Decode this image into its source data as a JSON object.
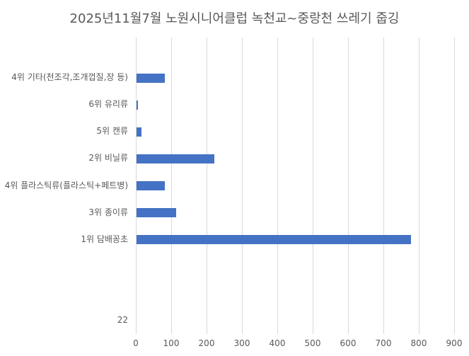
{
  "title": "2025년11월7월 노원시니어클럽 녹천교~중랑천 쓰레기 줍깅",
  "colors": {
    "bar": "#4472C4",
    "gridline": "#D9D9D9",
    "text": "#595959",
    "background": "#FFFFFF"
  },
  "chart_data": {
    "type": "bar",
    "orientation": "horizontal",
    "title": "2025년11월7월 노원시니어클럽 녹천교~중랑천 쓰레기 줍깅",
    "xlabel": "",
    "ylabel": "",
    "xlim": [
      0,
      900
    ],
    "x_ticks": [
      0,
      100,
      200,
      300,
      400,
      500,
      600,
      700,
      800,
      900
    ],
    "grid": true,
    "legend": false,
    "row_slots": 11,
    "categories": [
      {
        "label": "4위 기타(천조각,조개껍질,장 등)",
        "value": 80,
        "slot": 1
      },
      {
        "label": "6위 유리류",
        "value": 4,
        "slot": 2
      },
      {
        "label": "5위 캔류",
        "value": 14,
        "slot": 3
      },
      {
        "label": "2위 비닐류",
        "value": 220,
        "slot": 4
      },
      {
        "label": "4위 플라스틱류(플라스틱+페트병)",
        "value": 80,
        "slot": 5
      },
      {
        "label": "3위 종이류",
        "value": 111,
        "slot": 6
      },
      {
        "label": "1위 담배꽁초",
        "value": 775,
        "slot": 7
      },
      {
        "label": "22",
        "value": null,
        "slot": 10
      }
    ]
  }
}
